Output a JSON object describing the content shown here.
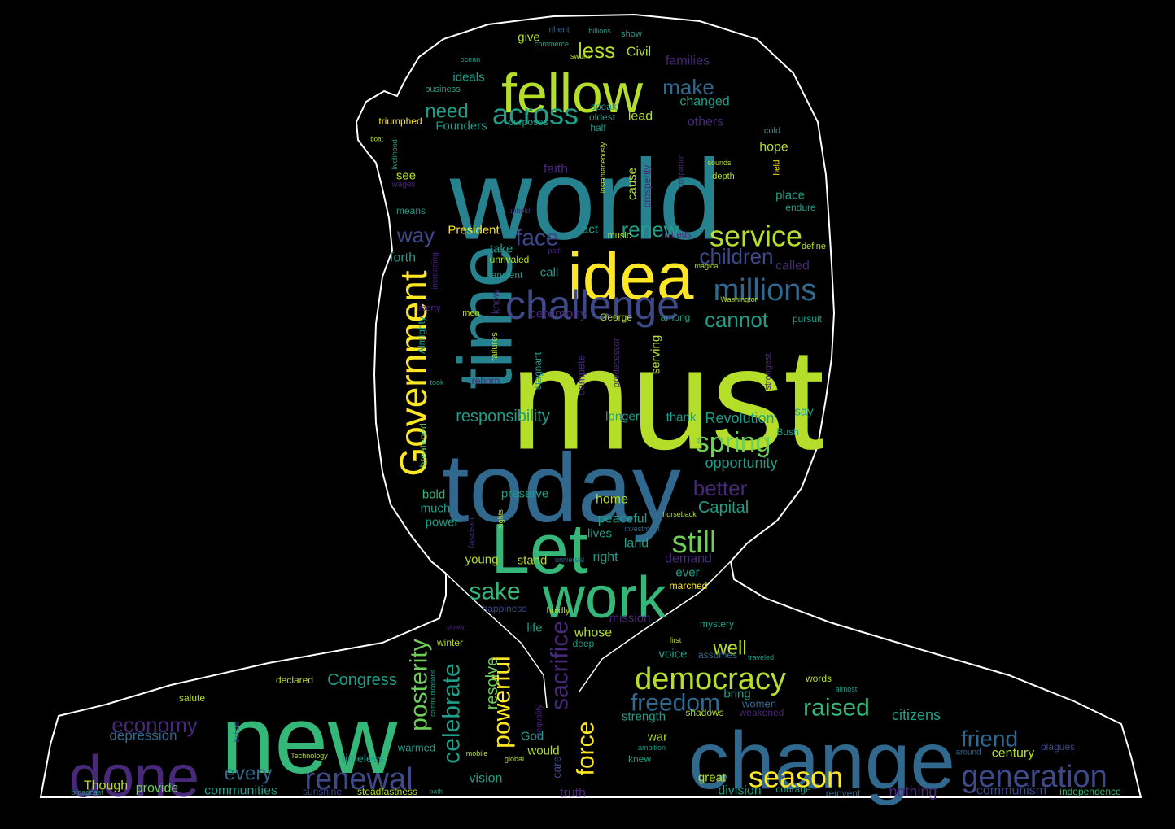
{
  "palette": {
    "background": "#000000",
    "outline": "#ffffff",
    "yellow": "#fde725",
    "lime": "#b5de2b",
    "green": "#6ece58",
    "mint": "#35b779",
    "teal": "#1f9e89",
    "cyan": "#26828e",
    "blue": "#31688e",
    "indigo": "#3e4989",
    "violet": "#482878",
    "purple": "#440154"
  },
  "words": [
    {
      "t": "must",
      "c": "lime"
    },
    {
      "t": "world",
      "c": "cyan"
    },
    {
      "t": "today",
      "c": "blue"
    },
    {
      "t": "new",
      "c": "mint"
    },
    {
      "t": "change",
      "c": "blue"
    },
    {
      "t": "time",
      "c": "cyan"
    },
    {
      "t": "idea",
      "c": "yellow"
    },
    {
      "t": "Let",
      "c": "mint"
    },
    {
      "t": "work",
      "c": "mint"
    },
    {
      "t": "fellow",
      "c": "lime"
    },
    {
      "t": "done",
      "c": "violet"
    },
    {
      "t": "challenge",
      "c": "indigo"
    },
    {
      "t": "Government",
      "c": "yellow"
    },
    {
      "t": "democracy",
      "c": "lime"
    },
    {
      "t": "generation",
      "c": "indigo"
    },
    {
      "t": "renewal",
      "c": "indigo"
    },
    {
      "t": "season",
      "c": "yellow"
    },
    {
      "t": "sacrifice",
      "c": "violet"
    },
    {
      "t": "across",
      "c": "teal"
    },
    {
      "t": "service",
      "c": "lime"
    },
    {
      "t": "millions",
      "c": "blue"
    },
    {
      "t": "freedom",
      "c": "blue"
    },
    {
      "t": "celebrate",
      "c": "teal"
    },
    {
      "t": "posterity",
      "c": "green"
    },
    {
      "t": "powerful",
      "c": "yellow"
    },
    {
      "t": "raised",
      "c": "mint"
    },
    {
      "t": "still",
      "c": "green"
    },
    {
      "t": "spring",
      "c": "green"
    },
    {
      "t": "friend",
      "c": "blue"
    },
    {
      "t": "economy",
      "c": "violet"
    },
    {
      "t": "face",
      "c": "indigo"
    },
    {
      "t": "renew",
      "c": "teal"
    },
    {
      "t": "children",
      "c": "indigo"
    },
    {
      "t": "sake",
      "c": "mint"
    },
    {
      "t": "make",
      "c": "blue"
    },
    {
      "t": "need",
      "c": "teal"
    },
    {
      "t": "force",
      "c": "yellow"
    },
    {
      "t": "less",
      "c": "lime"
    },
    {
      "t": "well",
      "c": "lime"
    },
    {
      "t": "better",
      "c": "violet"
    },
    {
      "t": "cannot",
      "c": "teal"
    },
    {
      "t": "way",
      "c": "indigo"
    },
    {
      "t": "every",
      "c": "blue"
    },
    {
      "t": "Congress",
      "c": "teal"
    },
    {
      "t": "responsibility",
      "c": "teal"
    },
    {
      "t": "Capital",
      "c": "teal"
    },
    {
      "t": "opportunity",
      "c": "teal"
    },
    {
      "t": "Revolution",
      "c": "teal"
    },
    {
      "t": "resolve",
      "c": "green"
    },
    {
      "t": "century",
      "c": "lime"
    },
    {
      "t": "citizens",
      "c": "teal"
    },
    {
      "t": "nothing",
      "c": "violet"
    },
    {
      "t": "communism",
      "c": "indigo"
    },
    {
      "t": "independence",
      "c": "mint"
    },
    {
      "t": "depression",
      "c": "blue"
    },
    {
      "t": "Though",
      "c": "lime"
    },
    {
      "t": "provide",
      "c": "green"
    },
    {
      "t": "communities",
      "c": "teal"
    },
    {
      "t": "truth",
      "c": "violet"
    },
    {
      "t": "care",
      "c": "indigo"
    },
    {
      "t": "vision",
      "c": "teal"
    },
    {
      "t": "timeless",
      "c": "teal"
    },
    {
      "t": "steadfastness",
      "c": "lime"
    },
    {
      "t": "sunshine",
      "c": "indigo"
    },
    {
      "t": "warmed",
      "c": "teal"
    },
    {
      "t": "God",
      "c": "teal"
    },
    {
      "t": "would",
      "c": "lime"
    },
    {
      "t": "great",
      "c": "lime"
    },
    {
      "t": "division",
      "c": "teal"
    },
    {
      "t": "courage",
      "c": "teal"
    },
    {
      "t": "reinvent",
      "c": "blue"
    },
    {
      "t": "plagues",
      "c": "indigo"
    },
    {
      "t": "around",
      "c": "blue"
    },
    {
      "t": "war",
      "c": "lime"
    },
    {
      "t": "knew",
      "c": "teal"
    },
    {
      "t": "ambition",
      "c": "teal"
    },
    {
      "t": "strength",
      "c": "teal"
    },
    {
      "t": "shadows",
      "c": "lime"
    },
    {
      "t": "weakened",
      "c": "violet"
    },
    {
      "t": "women",
      "c": "blue"
    },
    {
      "t": "bring",
      "c": "teal"
    },
    {
      "t": "words",
      "c": "lime"
    },
    {
      "t": "almost",
      "c": "teal"
    },
    {
      "t": "voice",
      "c": "teal"
    },
    {
      "t": "assumes",
      "c": "blue"
    },
    {
      "t": "traveled",
      "c": "teal"
    },
    {
      "t": "first",
      "c": "lime"
    },
    {
      "t": "deep",
      "c": "teal"
    },
    {
      "t": "mystery",
      "c": "teal"
    },
    {
      "t": "whose",
      "c": "lime"
    },
    {
      "t": "life",
      "c": "teal"
    },
    {
      "t": "mission",
      "c": "violet"
    },
    {
      "t": "happiness",
      "c": "indigo"
    },
    {
      "t": "boldly",
      "c": "lime"
    },
    {
      "t": "marched",
      "c": "yellow"
    },
    {
      "t": "ever",
      "c": "teal"
    },
    {
      "t": "demand",
      "c": "violet"
    },
    {
      "t": "right",
      "c": "teal"
    },
    {
      "t": "stand",
      "c": "lime"
    },
    {
      "t": "universal",
      "c": "blue"
    },
    {
      "t": "young",
      "c": "lime"
    },
    {
      "t": "land",
      "c": "teal"
    },
    {
      "t": "lives",
      "c": "teal"
    },
    {
      "t": "investment",
      "c": "blue"
    },
    {
      "t": "peaceful",
      "c": "teal"
    },
    {
      "t": "horseback",
      "c": "lime"
    },
    {
      "t": "home",
      "c": "lime"
    },
    {
      "t": "preserve",
      "c": "teal"
    },
    {
      "t": "power",
      "c": "teal"
    },
    {
      "t": "much",
      "c": "teal"
    },
    {
      "t": "bold",
      "c": "mint"
    },
    {
      "t": "threatened",
      "c": "green"
    },
    {
      "t": "sights",
      "c": "lime"
    },
    {
      "t": "fascism",
      "c": "violet"
    },
    {
      "t": "longer",
      "c": "teal"
    },
    {
      "t": "thank",
      "c": "teal"
    },
    {
      "t": "say",
      "c": "teal"
    },
    {
      "t": "Bush",
      "c": "teal"
    },
    {
      "t": "took",
      "c": "teal"
    },
    {
      "t": "reborn",
      "c": "violet"
    },
    {
      "t": "stagnant",
      "c": "teal"
    },
    {
      "t": "compete",
      "c": "violet"
    },
    {
      "t": "predecessor",
      "c": "violet"
    },
    {
      "t": "serving",
      "c": "lime"
    },
    {
      "t": "strongest",
      "c": "violet"
    },
    {
      "t": "Almighty",
      "c": "teal"
    },
    {
      "t": "failures",
      "c": "lime"
    },
    {
      "t": "liberty",
      "c": "violet"
    },
    {
      "t": "know",
      "c": "violet"
    },
    {
      "t": "men",
      "c": "lime"
    },
    {
      "t": "ceremony",
      "c": "violet"
    },
    {
      "t": "George",
      "c": "lime"
    },
    {
      "t": "among",
      "c": "teal"
    },
    {
      "t": "pursuit",
      "c": "teal"
    },
    {
      "t": "Washington",
      "c": "lime"
    },
    {
      "t": "called",
      "c": "violet"
    },
    {
      "t": "magical",
      "c": "lime"
    },
    {
      "t": "define",
      "c": "lime"
    },
    {
      "t": "hatreds",
      "c": "violet"
    },
    {
      "t": "music",
      "c": "lime"
    },
    {
      "t": "act",
      "c": "teal"
    },
    {
      "t": "President",
      "c": "yellow"
    },
    {
      "t": "take",
      "c": "teal"
    },
    {
      "t": "unrivaled",
      "c": "lime"
    },
    {
      "t": "ancient",
      "c": "teal"
    },
    {
      "t": "call",
      "c": "teal"
    },
    {
      "t": "forth",
      "c": "teal"
    },
    {
      "t": "increasing",
      "c": "violet"
    },
    {
      "t": "path",
      "c": "violet"
    },
    {
      "t": "means",
      "c": "teal"
    },
    {
      "t": "uphold",
      "c": "violet"
    },
    {
      "t": "wages",
      "c": "violet"
    },
    {
      "t": "see",
      "c": "lime"
    },
    {
      "t": "faith",
      "c": "violet"
    },
    {
      "t": "cause",
      "c": "lime"
    },
    {
      "t": "prosperity",
      "c": "violet"
    },
    {
      "t": "instantaneously",
      "c": "lime"
    },
    {
      "t": "competition",
      "c": "violet"
    },
    {
      "t": "sounds",
      "c": "lime"
    },
    {
      "t": "depth",
      "c": "lime"
    },
    {
      "t": "held",
      "c": "yellow"
    },
    {
      "t": "place",
      "c": "teal"
    },
    {
      "t": "endure",
      "c": "teal"
    },
    {
      "t": "hope",
      "c": "lime"
    },
    {
      "t": "cold",
      "c": "teal"
    },
    {
      "t": "others",
      "c": "violet"
    },
    {
      "t": "changed",
      "c": "teal"
    },
    {
      "t": "lead",
      "c": "lime"
    },
    {
      "t": "families",
      "c": "violet"
    },
    {
      "t": "Civil",
      "c": "lime"
    },
    {
      "t": "show",
      "c": "teal"
    },
    {
      "t": "billions",
      "c": "teal"
    },
    {
      "t": "inherit",
      "c": "blue"
    },
    {
      "t": "give",
      "c": "lime"
    },
    {
      "t": "commerce",
      "c": "teal"
    },
    {
      "t": "sworn",
      "c": "lime"
    },
    {
      "t": "ocean",
      "c": "teal"
    },
    {
      "t": "ideals",
      "c": "teal"
    },
    {
      "t": "business",
      "c": "teal"
    },
    {
      "t": "speak",
      "c": "teal"
    },
    {
      "t": "oldest",
      "c": "teal"
    },
    {
      "t": "half",
      "c": "teal"
    },
    {
      "t": "triumphed",
      "c": "yellow"
    },
    {
      "t": "Founders",
      "c": "teal"
    },
    {
      "t": "purposes",
      "c": "teal"
    },
    {
      "t": "livelihood",
      "c": "teal"
    },
    {
      "t": "boat",
      "c": "lime"
    },
    {
      "t": "declared",
      "c": "lime"
    },
    {
      "t": "salute",
      "c": "lime"
    },
    {
      "t": "behalf",
      "c": "indigo"
    },
    {
      "t": "Technology",
      "c": "lime"
    },
    {
      "t": "broadcast",
      "c": "teal"
    },
    {
      "t": "communications",
      "c": "teal"
    },
    {
      "t": "inequality",
      "c": "violet"
    },
    {
      "t": "mobile",
      "c": "lime"
    },
    {
      "t": "global",
      "c": "lime"
    },
    {
      "t": "winter",
      "c": "lime"
    },
    {
      "t": "slowly",
      "c": "violet"
    },
    {
      "t": "oath",
      "c": "teal"
    }
  ]
}
